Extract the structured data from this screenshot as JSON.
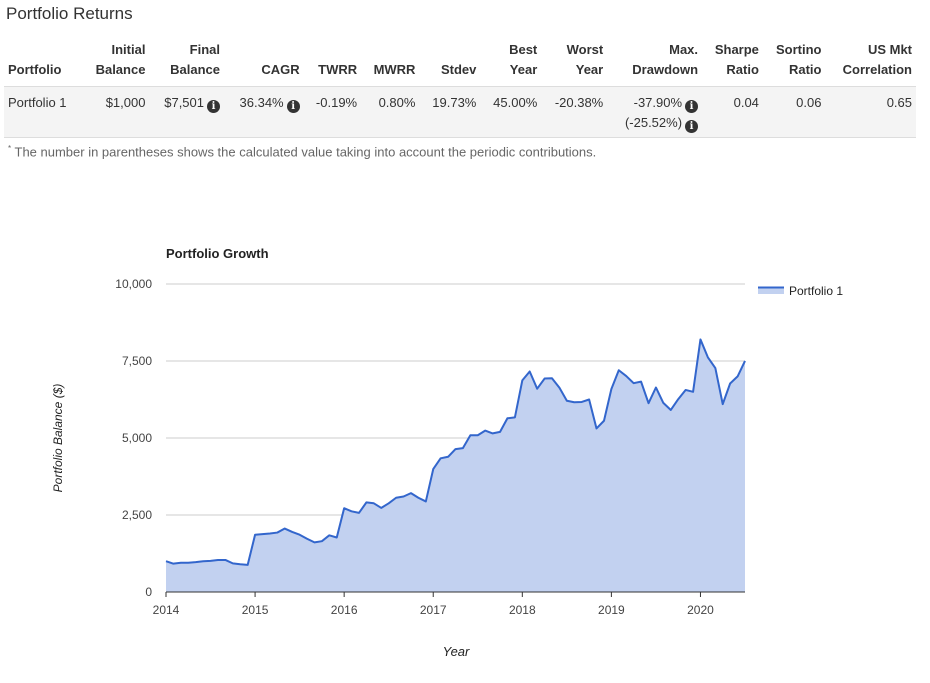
{
  "section_title": "Portfolio Returns",
  "table": {
    "headers": [
      {
        "l1": "",
        "l2": "Portfolio"
      },
      {
        "l1": "Initial",
        "l2": "Balance"
      },
      {
        "l1": "Final",
        "l2": "Balance"
      },
      {
        "l1": "",
        "l2": "CAGR"
      },
      {
        "l1": "",
        "l2": "TWRR"
      },
      {
        "l1": "",
        "l2": "MWRR"
      },
      {
        "l1": "",
        "l2": "Stdev"
      },
      {
        "l1": "Best",
        "l2": "Year"
      },
      {
        "l1": "Worst",
        "l2": "Year"
      },
      {
        "l1": "Max.",
        "l2": "Drawdown"
      },
      {
        "l1": "Sharpe",
        "l2": "Ratio"
      },
      {
        "l1": "Sortino",
        "l2": "Ratio"
      },
      {
        "l1": "US Mkt",
        "l2": "Correlation"
      }
    ],
    "row": {
      "portfolio": "Portfolio 1",
      "initial_balance": "$1,000",
      "final_balance": "$7,501",
      "cagr": "36.34%",
      "twrr": "-0.19%",
      "mwrr": "0.80%",
      "stdev": "19.73%",
      "best_year": "45.00%",
      "worst_year": "-20.38%",
      "max_drawdown": "-37.90%",
      "max_drawdown_contrib": "(-25.52%)",
      "sharpe": "0.04",
      "sortino": "0.06",
      "us_mkt_correlation": "0.65"
    },
    "info_icon": "info-circle-icon"
  },
  "footnote": {
    "marker": "*",
    "text": " The number in parentheses shows the calculated value taking into account the periodic contributions."
  },
  "chart_data": {
    "type": "area",
    "title": "Portfolio Growth",
    "xlabel": "Year",
    "ylabel": "Portfolio Balance ($)",
    "xlim": [
      2014,
      2020.5
    ],
    "ylim": [
      0,
      10000
    ],
    "x_ticks": [
      2014,
      2015,
      2016,
      2017,
      2018,
      2019,
      2020
    ],
    "y_ticks": [
      0,
      2500,
      5000,
      7500,
      10000
    ],
    "y_tick_labels": [
      "0",
      "2,500",
      "5,000",
      "7,500",
      "10,000"
    ],
    "grid": true,
    "legend_position": "right",
    "line_color": "#3366cc",
    "fill_color": "#c2d1f0",
    "series": [
      {
        "name": "Portfolio 1",
        "x": [
          2014.0,
          2014.083,
          2014.167,
          2014.25,
          2014.333,
          2014.417,
          2014.5,
          2014.583,
          2014.667,
          2014.75,
          2014.833,
          2014.917,
          2015.0,
          2015.083,
          2015.167,
          2015.25,
          2015.333,
          2015.417,
          2015.5,
          2015.583,
          2015.667,
          2015.75,
          2015.833,
          2015.917,
          2016.0,
          2016.083,
          2016.167,
          2016.25,
          2016.333,
          2016.417,
          2016.5,
          2016.583,
          2016.667,
          2016.75,
          2016.833,
          2016.917,
          2017.0,
          2017.083,
          2017.167,
          2017.25,
          2017.333,
          2017.417,
          2017.5,
          2017.583,
          2017.667,
          2017.75,
          2017.833,
          2017.917,
          2018.0,
          2018.083,
          2018.167,
          2018.25,
          2018.333,
          2018.417,
          2018.5,
          2018.583,
          2018.667,
          2018.75,
          2018.833,
          2018.917,
          2019.0,
          2019.083,
          2019.167,
          2019.25,
          2019.333,
          2019.417,
          2019.5,
          2019.583,
          2019.667,
          2019.75,
          2019.833,
          2019.917,
          2020.0,
          2020.083,
          2020.167,
          2020.25,
          2020.333,
          2020.417,
          2020.5
        ],
        "values": [
          1000,
          920,
          950,
          950,
          970,
          1000,
          1010,
          1040,
          1040,
          930,
          900,
          880,
          1860,
          1880,
          1900,
          1930,
          2060,
          1950,
          1860,
          1730,
          1610,
          1650,
          1840,
          1770,
          2720,
          2620,
          2570,
          2910,
          2880,
          2730,
          2880,
          3060,
          3100,
          3210,
          3060,
          2940,
          3990,
          4340,
          4390,
          4640,
          4670,
          5090,
          5090,
          5240,
          5150,
          5200,
          5640,
          5670,
          6870,
          7160,
          6600,
          6930,
          6940,
          6630,
          6210,
          6160,
          6170,
          6250,
          5310,
          5560,
          6590,
          7200,
          7010,
          6780,
          6830,
          6130,
          6640,
          6140,
          5910,
          6260,
          6560,
          6500,
          8200,
          7620,
          7270,
          6100,
          6770,
          7000,
          7501
        ]
      }
    ]
  }
}
